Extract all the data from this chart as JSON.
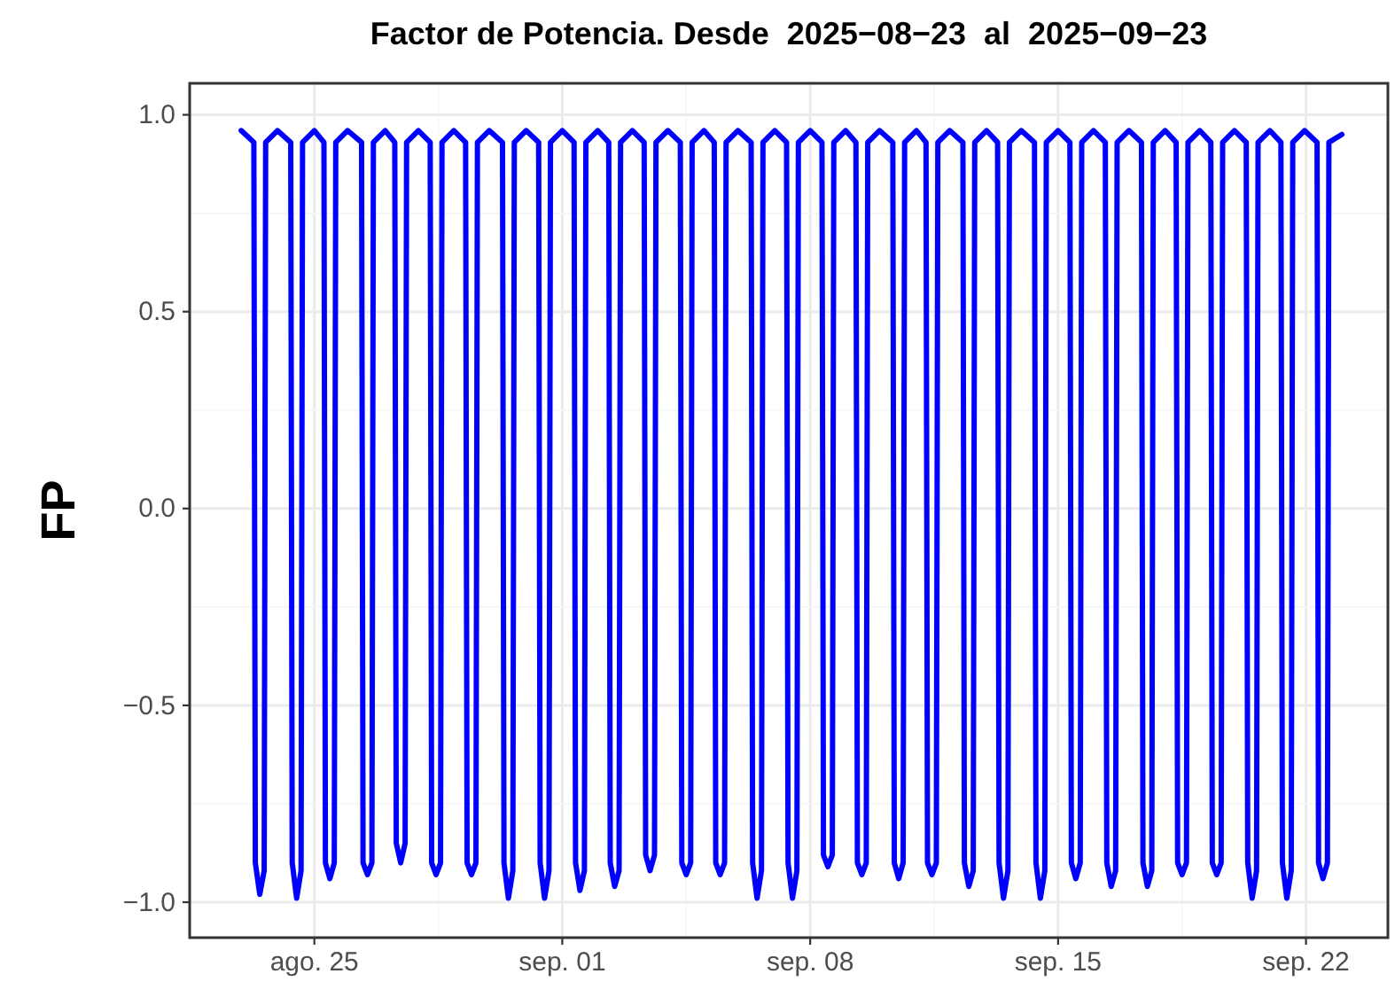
{
  "chart_data": {
    "type": "line",
    "title": "Factor de Potencia. Desde  2025−08−23  al  2025−09−23",
    "ylabel": "FP",
    "xlim": [
      "2025-08-21T11:30",
      "2025-09-24T07:30"
    ],
    "xticks": [
      {
        "value": "2025-08-25",
        "label": "ago. 25"
      },
      {
        "value": "2025-09-01",
        "label": "sep. 01"
      },
      {
        "value": "2025-09-08",
        "label": "sep. 08"
      },
      {
        "value": "2025-09-15",
        "label": "sep. 15"
      },
      {
        "value": "2025-09-22",
        "label": "sep. 22"
      }
    ],
    "ylim": [
      -1.09,
      1.08
    ],
    "yticks": [
      {
        "value": -1,
        "label": "−1.0"
      },
      {
        "value": -0.5,
        "label": "−0.5"
      },
      {
        "value": 0,
        "label": "0.0"
      },
      {
        "value": 0.5,
        "label": "0.5"
      },
      {
        "value": 1,
        "label": "1.0"
      }
    ],
    "grid": true,
    "marker": "none",
    "line_style": "solid",
    "series": [
      {
        "color": "#0000ff",
        "x": [
          "2025-08-22T22:24",
          "2025-08-23T07:00",
          "2025-08-23T08:00",
          "2025-08-23T11:00",
          "2025-08-23T14:00",
          "2025-08-23T15:00",
          "2025-08-23T23:00",
          "2025-08-24T08:00",
          "2025-08-24T09:00",
          "2025-08-24T12:00",
          "2025-08-24T15:00",
          "2025-08-24T16:00",
          "2025-08-25T00:00",
          "2025-08-25T06:30",
          "2025-08-25T07:30",
          "2025-08-25T10:30",
          "2025-08-25T13:30",
          "2025-08-25T14:30",
          "2025-08-25T22:30",
          "2025-08-26T08:00",
          "2025-08-26T09:00",
          "2025-08-26T12:00",
          "2025-08-26T15:00",
          "2025-08-26T16:00",
          "2025-08-27T00:00",
          "2025-08-27T06:30",
          "2025-08-27T07:30",
          "2025-08-27T10:30",
          "2025-08-27T13:30",
          "2025-08-27T14:30",
          "2025-08-27T22:30",
          "2025-08-28T06:30",
          "2025-08-28T07:30",
          "2025-08-28T10:30",
          "2025-08-28T13:30",
          "2025-08-28T14:30",
          "2025-08-28T22:30",
          "2025-08-29T06:30",
          "2025-08-29T07:30",
          "2025-08-29T10:30",
          "2025-08-29T13:30",
          "2025-08-29T14:30",
          "2025-08-29T22:30",
          "2025-08-30T07:30",
          "2025-08-30T08:30",
          "2025-08-30T11:30",
          "2025-08-30T14:30",
          "2025-08-30T15:30",
          "2025-08-30T23:30",
          "2025-08-31T08:00",
          "2025-08-31T09:00",
          "2025-08-31T12:00",
          "2025-08-31T15:00",
          "2025-08-31T16:00",
          "2025-09-01T00:00",
          "2025-09-01T08:00",
          "2025-09-01T09:00",
          "2025-09-01T12:00",
          "2025-09-01T15:00",
          "2025-09-01T16:00",
          "2025-09-02T00:00",
          "2025-09-02T07:30",
          "2025-09-02T08:30",
          "2025-09-02T11:30",
          "2025-09-02T14:30",
          "2025-09-02T15:30",
          "2025-09-02T23:30",
          "2025-09-03T07:30",
          "2025-09-03T08:30",
          "2025-09-03T11:30",
          "2025-09-03T14:30",
          "2025-09-03T15:30",
          "2025-09-03T23:30",
          "2025-09-04T08:00",
          "2025-09-04T09:00",
          "2025-09-04T12:00",
          "2025-09-04T15:00",
          "2025-09-04T16:00",
          "2025-09-05T00:00",
          "2025-09-05T07:00",
          "2025-09-05T08:00",
          "2025-09-05T11:00",
          "2025-09-05T14:00",
          "2025-09-05T15:00",
          "2025-09-05T23:00",
          "2025-09-06T08:00",
          "2025-09-06T09:00",
          "2025-09-06T12:00",
          "2025-09-06T15:00",
          "2025-09-06T16:00",
          "2025-09-07T00:00",
          "2025-09-07T08:00",
          "2025-09-07T09:00",
          "2025-09-07T12:00",
          "2025-09-07T15:00",
          "2025-09-07T16:00",
          "2025-09-08T00:00",
          "2025-09-08T08:00",
          "2025-09-08T09:00",
          "2025-09-08T12:00",
          "2025-09-08T15:00",
          "2025-09-08T16:00",
          "2025-09-09T00:00",
          "2025-09-09T07:00",
          "2025-09-09T08:00",
          "2025-09-09T11:00",
          "2025-09-09T14:00",
          "2025-09-09T15:00",
          "2025-09-09T23:00",
          "2025-09-10T08:00",
          "2025-09-10T09:00",
          "2025-09-10T12:00",
          "2025-09-10T15:00",
          "2025-09-10T16:00",
          "2025-09-11T00:00",
          "2025-09-11T06:30",
          "2025-09-11T07:30",
          "2025-09-11T10:30",
          "2025-09-11T13:30",
          "2025-09-11T14:30",
          "2025-09-11T22:30",
          "2025-09-12T07:30",
          "2025-09-12T08:30",
          "2025-09-12T11:30",
          "2025-09-12T14:30",
          "2025-09-12T15:30",
          "2025-09-12T23:30",
          "2025-09-13T07:00",
          "2025-09-13T08:00",
          "2025-09-13T11:00",
          "2025-09-13T14:00",
          "2025-09-13T15:00",
          "2025-09-13T23:00",
          "2025-09-14T08:00",
          "2025-09-14T09:00",
          "2025-09-14T12:00",
          "2025-09-14T15:00",
          "2025-09-14T16:00",
          "2025-09-15T00:00",
          "2025-09-15T08:00",
          "2025-09-15T09:00",
          "2025-09-15T12:00",
          "2025-09-15T15:00",
          "2025-09-15T16:00",
          "2025-09-16T00:00",
          "2025-09-16T08:00",
          "2025-09-16T09:00",
          "2025-09-16T12:00",
          "2025-09-16T15:00",
          "2025-09-16T16:00",
          "2025-09-17T00:00",
          "2025-09-17T08:30",
          "2025-09-17T09:30",
          "2025-09-17T12:30",
          "2025-09-17T15:30",
          "2025-09-17T16:30",
          "2025-09-18T00:30",
          "2025-09-18T08:00",
          "2025-09-18T09:00",
          "2025-09-18T12:00",
          "2025-09-18T15:00",
          "2025-09-18T16:00",
          "2025-09-19T00:00",
          "2025-09-19T07:30",
          "2025-09-19T08:30",
          "2025-09-19T11:30",
          "2025-09-19T14:30",
          "2025-09-19T15:30",
          "2025-09-19T23:30",
          "2025-09-20T07:30",
          "2025-09-20T08:30",
          "2025-09-20T11:30",
          "2025-09-20T14:30",
          "2025-09-20T15:30",
          "2025-09-20T23:30",
          "2025-09-21T07:00",
          "2025-09-21T08:00",
          "2025-09-21T11:00",
          "2025-09-21T14:00",
          "2025-09-21T15:00",
          "2025-09-21T23:00",
          "2025-09-22T07:30",
          "2025-09-22T08:30",
          "2025-09-22T11:30",
          "2025-09-22T14:30",
          "2025-09-22T15:30",
          "2025-09-23T00:18"
        ],
        "values": [
          0.96,
          0.93,
          -0.9,
          -0.98,
          -0.92,
          0.93,
          0.96,
          0.93,
          -0.9,
          -0.99,
          -0.92,
          0.93,
          0.96,
          0.93,
          -0.9,
          -0.94,
          -0.9,
          0.93,
          0.96,
          0.93,
          -0.9,
          -0.93,
          -0.9,
          0.93,
          0.96,
          0.93,
          -0.85,
          -0.9,
          -0.85,
          0.93,
          0.96,
          0.93,
          -0.9,
          -0.93,
          -0.9,
          0.93,
          0.96,
          0.93,
          -0.9,
          -0.93,
          -0.9,
          0.93,
          0.96,
          0.93,
          -0.9,
          -0.99,
          -0.92,
          0.93,
          0.96,
          0.93,
          -0.9,
          -0.99,
          -0.92,
          0.93,
          0.96,
          0.93,
          -0.9,
          -0.97,
          -0.92,
          0.93,
          0.96,
          0.93,
          -0.9,
          -0.96,
          -0.92,
          0.93,
          0.96,
          0.93,
          -0.88,
          -0.92,
          -0.88,
          0.93,
          0.96,
          0.93,
          -0.9,
          -0.93,
          -0.9,
          0.93,
          0.96,
          0.93,
          -0.9,
          -0.93,
          -0.9,
          0.93,
          0.96,
          0.93,
          -0.9,
          -0.99,
          -0.92,
          0.93,
          0.96,
          0.93,
          -0.9,
          -0.99,
          -0.92,
          0.93,
          0.96,
          0.93,
          -0.88,
          -0.91,
          -0.88,
          0.93,
          0.96,
          0.93,
          -0.9,
          -0.93,
          -0.9,
          0.93,
          0.96,
          0.93,
          -0.9,
          -0.94,
          -0.9,
          0.93,
          0.96,
          0.93,
          -0.9,
          -0.93,
          -0.9,
          0.93,
          0.96,
          0.93,
          -0.9,
          -0.96,
          -0.92,
          0.93,
          0.96,
          0.93,
          -0.9,
          -0.99,
          -0.92,
          0.93,
          0.96,
          0.93,
          -0.9,
          -0.99,
          -0.92,
          0.93,
          0.96,
          0.93,
          -0.9,
          -0.94,
          -0.9,
          0.93,
          0.96,
          0.93,
          -0.9,
          -0.96,
          -0.92,
          0.93,
          0.96,
          0.93,
          -0.9,
          -0.96,
          -0.92,
          0.93,
          0.96,
          0.93,
          -0.9,
          -0.93,
          -0.9,
          0.93,
          0.96,
          0.93,
          -0.9,
          -0.93,
          -0.9,
          0.93,
          0.96,
          0.93,
          -0.9,
          -0.99,
          -0.92,
          0.93,
          0.96,
          0.93,
          -0.9,
          -0.99,
          -0.92,
          0.93,
          0.96,
          0.93,
          -0.9,
          -0.94,
          -0.9,
          0.93,
          0.95
        ]
      }
    ]
  }
}
